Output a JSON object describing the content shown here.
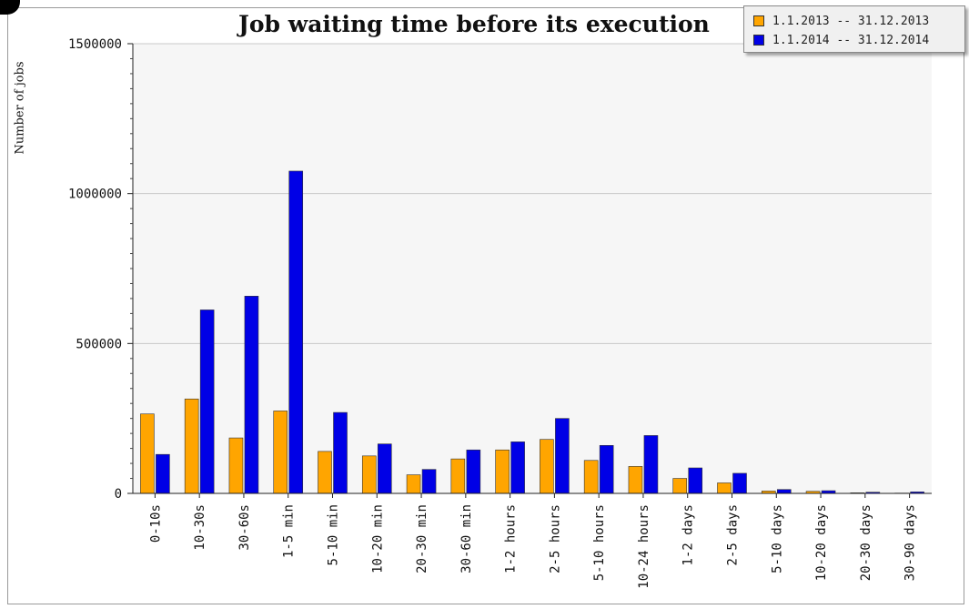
{
  "chart_data": {
    "type": "bar",
    "title": "Job waiting time before its execution",
    "xlabel": "",
    "ylabel": "Number of jobs",
    "ylim": [
      0,
      1500000
    ],
    "yticks": [
      0,
      500000,
      1000000,
      1500000
    ],
    "grid": true,
    "legend_position": "top-right",
    "categories": [
      "0-10s",
      "10-30s",
      "30-60s",
      "1-5 min",
      "5-10 min",
      "10-20 min",
      "20-30 min",
      "30-60 min",
      "1-2 hours",
      "2-5 hours",
      "5-10 hours",
      "10-24 hours",
      "1-2 days",
      "2-5 days",
      "5-10 days",
      "10-20 days",
      "20-30 days",
      "30-90 days"
    ],
    "series": [
      {
        "name": "1.1.2013 -- 31.12.2013",
        "color": "#ffa500",
        "values": [
          265000,
          315000,
          185000,
          275000,
          140000,
          125000,
          62000,
          115000,
          145000,
          180000,
          110000,
          90000,
          50000,
          35000,
          8000,
          7000,
          2000,
          1000
        ]
      },
      {
        "name": "1.1.2014 -- 31.12.2014",
        "color": "#0000e6",
        "values": [
          130000,
          612000,
          658000,
          1075000,
          270000,
          165000,
          80000,
          145000,
          172000,
          250000,
          160000,
          193000,
          85000,
          67000,
          13000,
          9000,
          4000,
          5000
        ]
      }
    ]
  }
}
